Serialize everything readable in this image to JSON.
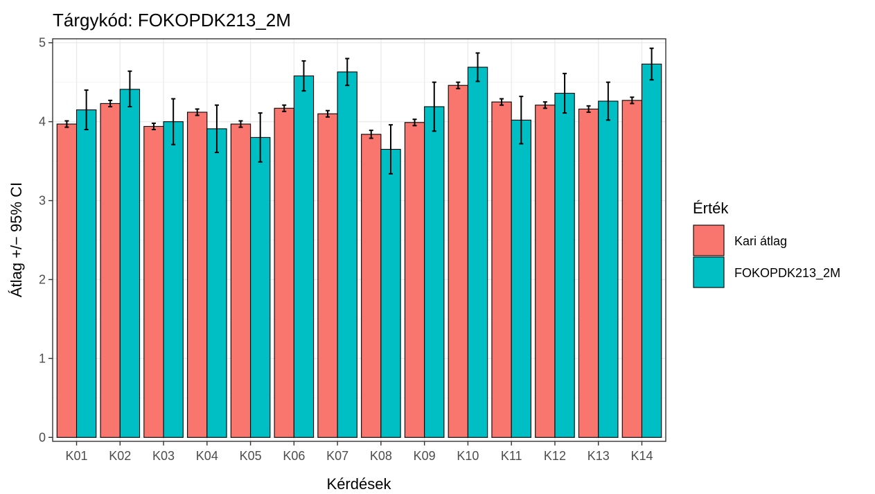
{
  "chart_data": {
    "type": "bar",
    "title": "Tárgykód:  FOKOPDK213_2M",
    "xlabel": "Kérdések",
    "ylabel": "Átlag +/− 95% CI",
    "ylim": [
      -0.05,
      5.05
    ],
    "yticks": [
      0,
      1,
      2,
      3,
      4,
      5
    ],
    "grid": true,
    "legend_title": "Érték",
    "legend_position": "right",
    "categories": [
      "K01",
      "K02",
      "K03",
      "K04",
      "K05",
      "K06",
      "K07",
      "K08",
      "K09",
      "K10",
      "K11",
      "K12",
      "K13",
      "K14"
    ],
    "series": [
      {
        "name": "Kari átlag",
        "color": "#F8766D",
        "values": [
          3.97,
          4.23,
          3.94,
          4.12,
          3.97,
          4.17,
          4.1,
          3.84,
          3.99,
          4.46,
          4.25,
          4.21,
          4.16,
          4.27
        ],
        "ci_low": [
          3.93,
          4.19,
          3.9,
          4.08,
          3.93,
          4.13,
          4.06,
          3.79,
          3.95,
          4.42,
          4.21,
          4.17,
          4.12,
          4.23
        ],
        "ci_high": [
          4.01,
          4.27,
          3.98,
          4.16,
          4.01,
          4.21,
          4.14,
          3.89,
          4.03,
          4.5,
          4.29,
          4.25,
          4.2,
          4.31
        ]
      },
      {
        "name": "FOKOPDK213_2M",
        "color": "#00BFC4",
        "values": [
          4.15,
          4.41,
          4.0,
          3.91,
          3.8,
          4.58,
          4.63,
          3.65,
          4.19,
          4.69,
          4.02,
          4.36,
          4.26,
          4.73
        ],
        "ci_low": [
          3.9,
          4.19,
          3.71,
          3.61,
          3.49,
          4.39,
          4.46,
          3.34,
          3.88,
          4.51,
          3.72,
          4.11,
          4.02,
          4.53
        ],
        "ci_high": [
          4.4,
          4.64,
          4.29,
          4.21,
          4.11,
          4.77,
          4.8,
          3.96,
          4.5,
          4.87,
          4.32,
          4.61,
          4.5,
          4.93
        ]
      }
    ]
  }
}
